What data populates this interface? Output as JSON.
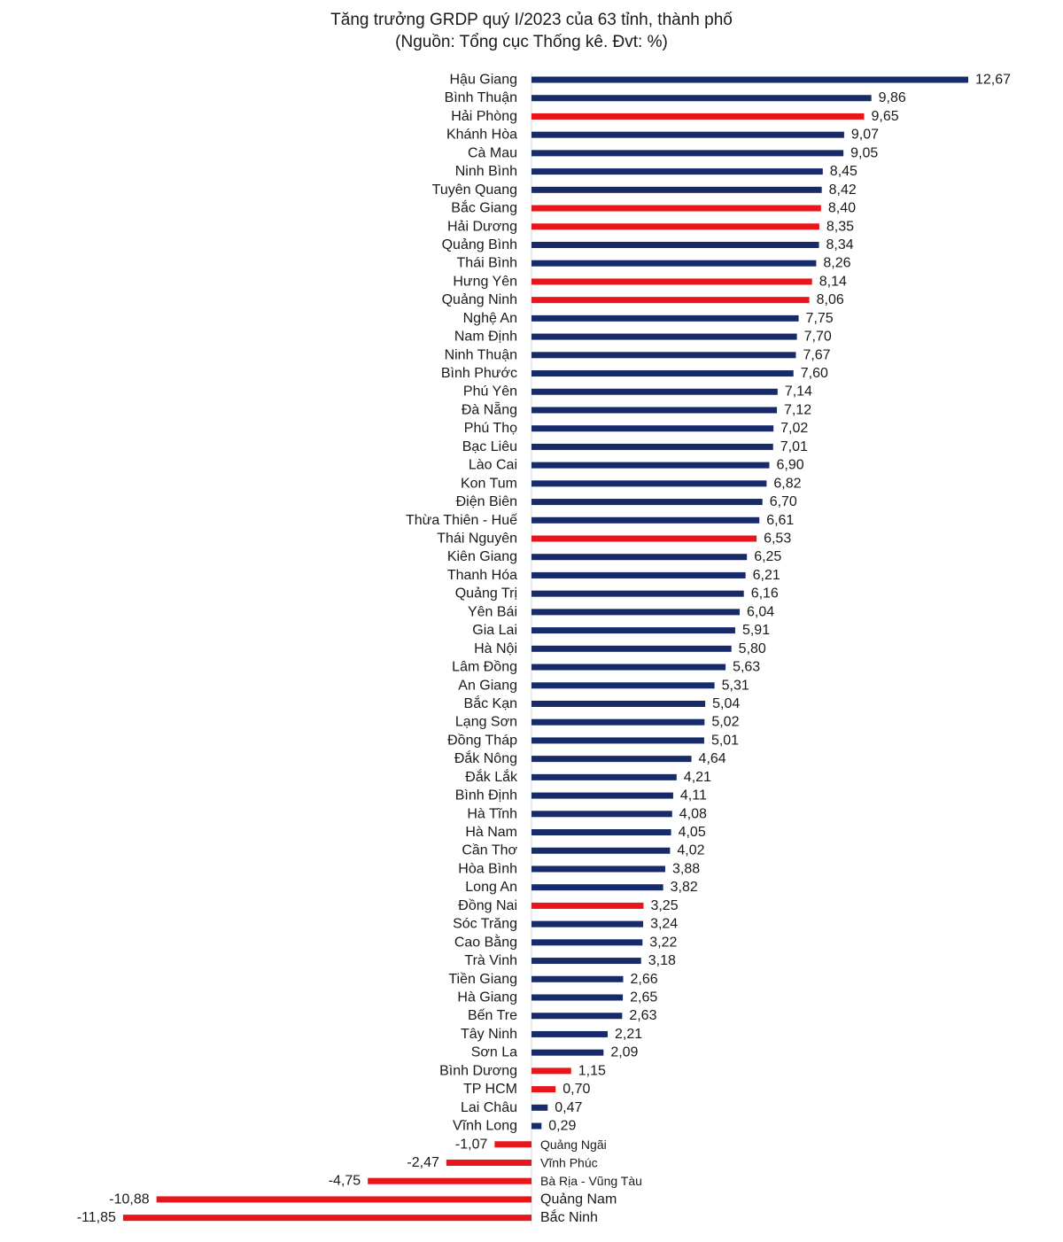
{
  "chart_data": {
    "type": "bar",
    "orientation": "horizontal",
    "title": "Tăng trưởng GRDP quý I/2023 của 63 tỉnh, thành phố",
    "subtitle": "(Nguồn: Tổng cục Thống kê. Đvt: %)",
    "colors": {
      "default": "#172b6b",
      "highlight": "#e8161b"
    },
    "xlim": [
      -11.85,
      12.67
    ],
    "grid": false,
    "legend": "none",
    "categories": [
      "Hậu Giang",
      "Bình Thuận",
      "Hải Phòng",
      "Khánh Hòa",
      "Cà Mau",
      "Ninh Bình",
      "Tuyên Quang",
      "Bắc Giang",
      "Hải Dương",
      "Quảng Bình",
      "Thái Bình",
      "Hưng Yên",
      "Quảng Ninh",
      "Nghệ An",
      "Nam Định",
      "Ninh Thuận",
      "Bình Phước",
      "Phú Yên",
      "Đà Nẵng",
      "Phú Thọ",
      "Bạc Liêu",
      "Lào Cai",
      "Kon Tum",
      "Điện Biên",
      "Thừa Thiên - Huế",
      "Thái Nguyên",
      "Kiên Giang",
      "Thanh Hóa",
      "Quảng Trị",
      "Yên Bái",
      "Gia Lai",
      "Hà Nội",
      "Lâm Đồng",
      "An Giang",
      "Bắc Kạn",
      "Lạng Sơn",
      "Đồng Tháp",
      "Đắk Nông",
      "Đắk Lắk",
      "Bình Định",
      "Hà Tĩnh",
      "Hà Nam",
      "Cần Thơ",
      "Hòa Bình",
      "Long An",
      "Đồng Nai",
      "Sóc Trăng",
      "Cao Bằng",
      "Trà Vinh",
      "Tiền Giang",
      "Hà Giang",
      "Bến Tre",
      "Tây Ninh",
      "Sơn La",
      "Bình Dương",
      "TP HCM",
      "Lai Châu",
      "Vĩnh Long",
      "Quảng Ngãi",
      "Vĩnh Phúc",
      "Bà Rịa - Vũng Tàu",
      "Quảng Nam",
      "Bắc Ninh"
    ],
    "values": [
      12.67,
      9.86,
      9.65,
      9.07,
      9.05,
      8.45,
      8.42,
      8.4,
      8.35,
      8.34,
      8.26,
      8.14,
      8.06,
      7.75,
      7.7,
      7.67,
      7.6,
      7.14,
      7.12,
      7.02,
      7.01,
      6.9,
      6.82,
      6.7,
      6.61,
      6.53,
      6.25,
      6.21,
      6.16,
      6.04,
      5.91,
      5.8,
      5.63,
      5.31,
      5.04,
      5.02,
      5.01,
      4.64,
      4.21,
      4.11,
      4.08,
      4.05,
      4.02,
      3.88,
      3.82,
      3.25,
      3.24,
      3.22,
      3.18,
      2.66,
      2.65,
      2.63,
      2.21,
      2.09,
      1.15,
      0.7,
      0.47,
      0.29,
      -1.07,
      -2.47,
      -4.75,
      -10.88,
      -11.85
    ],
    "value_labels": [
      "12,67",
      "9,86",
      "9,65",
      "9,07",
      "9,05",
      "8,45",
      "8,42",
      "8,40",
      "8,35",
      "8,34",
      "8,26",
      "8,14",
      "8,06",
      "7,75",
      "7,70",
      "7,67",
      "7,60",
      "7,14",
      "7,12",
      "7,02",
      "7,01",
      "6,90",
      "6,82",
      "6,70",
      "6,61",
      "6,53",
      "6,25",
      "6,21",
      "6,16",
      "6,04",
      "5,91",
      "5,80",
      "5,63",
      "5,31",
      "5,04",
      "5,02",
      "5,01",
      "4,64",
      "4,21",
      "4,11",
      "4,08",
      "4,05",
      "4,02",
      "3,88",
      "3,82",
      "3,25",
      "3,24",
      "3,22",
      "3,18",
      "2,66",
      "2,65",
      "2,63",
      "2,21",
      "2,09",
      "1,15",
      "0,70",
      "0,47",
      "0,29",
      "-1,07",
      "-2,47",
      "-4,75",
      "-10,88",
      "-11,85"
    ],
    "highlighted": [
      "Hải Phòng",
      "Bắc Giang",
      "Hải Dương",
      "Hưng Yên",
      "Quảng Ninh",
      "Thái Nguyên",
      "Đồng Nai",
      "Bình Dương",
      "TP HCM",
      "Quảng Ngãi",
      "Vĩnh Phúc",
      "Bà Rịa - Vũng Tàu",
      "Quảng Nam",
      "Bắc Ninh"
    ]
  }
}
